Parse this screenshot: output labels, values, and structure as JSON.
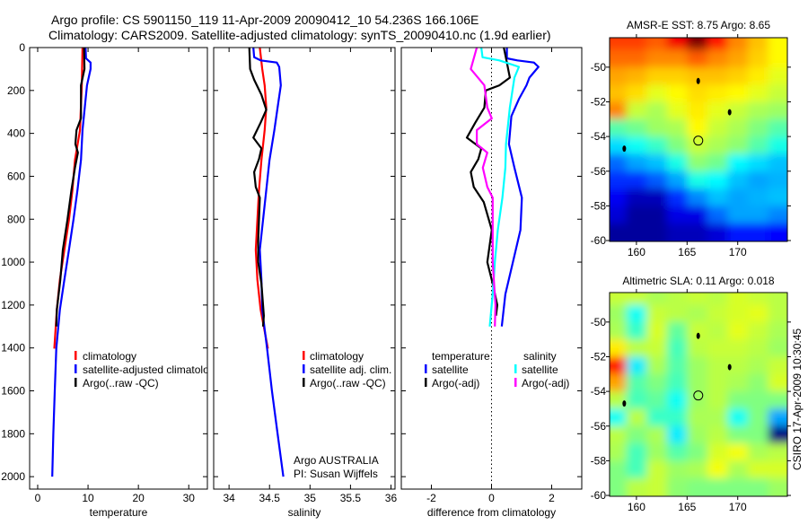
{
  "title_line1": "Argo profile: CS 5901150_119 11-Apr-2009 20090412_10 54.236S 166.106E",
  "title_line2": "Climatology: CARS2009. Satellite-adjusted climatology: synTS_20090410.nc (1.9d earlier)",
  "credit": "CSIRO 17-Apr-2009 10:30:45",
  "annotation": {
    "line1": "Argo AUSTRALIA",
    "line2": "PI: Susan Wijffels"
  },
  "colors": {
    "red": "#ff0000",
    "blue": "#0000ff",
    "black": "#000000",
    "cyan": "#00ffff",
    "magenta": "#ff00ff"
  },
  "chart_data": [
    {
      "type": "line",
      "xlabel": "temperature",
      "ylabel": "",
      "ylim": [
        0,
        2058
      ],
      "xlim": [
        -1.6,
        33.7
      ],
      "y_reversed": true,
      "xticks": [
        "0",
        "10",
        "20",
        "30"
      ],
      "xtick_values": [
        0,
        10,
        20,
        30
      ],
      "yticks": [
        "0",
        "200",
        "400",
        "600",
        "800",
        "1000",
        "1200",
        "1400",
        "1600",
        "1800",
        "2000"
      ],
      "legend": [
        "climatology",
        "satellite-adjusted climatology",
        "Argo(..raw -QC)"
      ],
      "series": [
        {
          "name": "climatology",
          "color": "red",
          "points": [
            [
              8.9,
              0
            ],
            [
              8.75,
              176
            ],
            [
              8.4,
              385
            ],
            [
              7.4,
              524
            ],
            [
              6.9,
              664
            ],
            [
              6.2,
              803
            ],
            [
              5.3,
              943
            ],
            [
              4.4,
              1082
            ],
            [
              3.8,
              1222
            ],
            [
              3.3,
              1403
            ]
          ]
        },
        {
          "name": "satellite-adjusted climatology",
          "color": "blue",
          "points": [
            [
              9.5,
              0
            ],
            [
              9.6,
              50
            ],
            [
              10.5,
              70
            ],
            [
              10.5,
              100
            ],
            [
              9.8,
              176
            ],
            [
              8.9,
              385
            ],
            [
              8.6,
              524
            ],
            [
              7.9,
              664
            ],
            [
              7.1,
              803
            ],
            [
              6.2,
              943
            ],
            [
              5.3,
              1082
            ],
            [
              4.4,
              1222
            ],
            [
              3.7,
              1403
            ],
            [
              3.4,
              1600
            ],
            [
              3.1,
              1800
            ],
            [
              2.9,
              2000
            ]
          ]
        },
        {
          "name": "Argo(..raw -QC)",
          "color": "black",
          "points": [
            [
              9.2,
              0
            ],
            [
              9.3,
              100
            ],
            [
              8.6,
              176
            ],
            [
              8.6,
              330
            ],
            [
              7.7,
              385
            ],
            [
              7.5,
              450
            ],
            [
              8.0,
              490
            ],
            [
              7.4,
              560
            ],
            [
              6.7,
              664
            ],
            [
              5.9,
              803
            ],
            [
              5.0,
              943
            ],
            [
              4.5,
              1082
            ],
            [
              3.8,
              1222
            ],
            [
              3.7,
              1300
            ]
          ]
        }
      ]
    },
    {
      "type": "line",
      "xlabel": "salinity",
      "ylim": [
        0,
        2058
      ],
      "xlim": [
        33.81,
        36.05
      ],
      "y_reversed": true,
      "xticks": [
        "34",
        "34.5",
        "35",
        "35.5",
        "36"
      ],
      "xtick_values": [
        34,
        34.5,
        35,
        35.5,
        36
      ],
      "legend": [
        "climatology",
        "satellite adj. clim.",
        "Argo(..raw -QC)"
      ],
      "series": [
        {
          "name": "climatology",
          "color": "red",
          "points": [
            [
              34.38,
              0
            ],
            [
              34.41,
              100
            ],
            [
              34.44,
              176
            ],
            [
              34.46,
              280
            ],
            [
              34.44,
              385
            ],
            [
              34.4,
              524
            ],
            [
              34.37,
              664
            ],
            [
              34.35,
              803
            ],
            [
              34.33,
              943
            ],
            [
              34.35,
              1082
            ],
            [
              34.39,
              1222
            ],
            [
              34.48,
              1403
            ]
          ]
        },
        {
          "name": "satellite adj. clim.",
          "color": "blue",
          "points": [
            [
              34.3,
              0
            ],
            [
              34.31,
              45
            ],
            [
              34.39,
              60
            ],
            [
              34.59,
              70
            ],
            [
              34.62,
              90
            ],
            [
              34.64,
              176
            ],
            [
              34.6,
              280
            ],
            [
              34.56,
              385
            ],
            [
              34.5,
              524
            ],
            [
              34.46,
              664
            ],
            [
              34.42,
              803
            ],
            [
              34.38,
              943
            ],
            [
              34.4,
              1082
            ],
            [
              34.41,
              1222
            ],
            [
              34.47,
              1403
            ],
            [
              34.53,
              1600
            ],
            [
              34.6,
              1800
            ],
            [
              34.67,
              2000
            ]
          ]
        },
        {
          "name": "Argo(..raw -QC)",
          "color": "black",
          "points": [
            [
              34.25,
              0
            ],
            [
              34.26,
              100
            ],
            [
              34.31,
              150
            ],
            [
              34.4,
              220
            ],
            [
              34.46,
              290
            ],
            [
              34.39,
              350
            ],
            [
              34.3,
              420
            ],
            [
              34.4,
              470
            ],
            [
              34.37,
              520
            ],
            [
              34.31,
              580
            ],
            [
              34.33,
              650
            ],
            [
              34.38,
              700
            ],
            [
              34.36,
              900
            ],
            [
              34.36,
              1000
            ],
            [
              34.4,
              1100
            ],
            [
              34.43,
              1250
            ],
            [
              34.42,
              1300
            ]
          ]
        }
      ]
    },
    {
      "type": "line",
      "xlabel": "difference from climatology",
      "ylim": [
        0,
        2058
      ],
      "xlim": [
        -3,
        3
      ],
      "y_reversed": true,
      "xticks": [
        "-2",
        "0",
        "2"
      ],
      "xtick_values": [
        -2,
        0,
        2
      ],
      "legend_groups": [
        {
          "heading": "temperature",
          "items": [
            "satellite",
            "Argo(-adj)"
          ]
        },
        {
          "heading": "salinity",
          "items": [
            "satellite",
            "Argo(-adj)"
          ]
        }
      ],
      "series": [
        {
          "name": "temperature satellite",
          "color": "blue",
          "points": [
            [
              0.51,
              0
            ],
            [
              0.51,
              50
            ],
            [
              0.86,
              60
            ],
            [
              1.41,
              70
            ],
            [
              1.56,
              90
            ],
            [
              1.26,
              140
            ],
            [
              1.16,
              176
            ],
            [
              0.91,
              240
            ],
            [
              0.66,
              320
            ],
            [
              0.58,
              450
            ],
            [
              0.76,
              560
            ],
            [
              1.01,
              700
            ],
            [
              0.96,
              850
            ],
            [
              0.71,
              1000
            ],
            [
              0.46,
              1150
            ],
            [
              0.34,
              1300
            ]
          ]
        },
        {
          "name": "temperature Argo(-adj)",
          "color": "black",
          "points": [
            [
              0.41,
              0
            ],
            [
              0.51,
              70
            ],
            [
              0.61,
              140
            ],
            [
              0.26,
              176
            ],
            [
              -0.19,
              200
            ],
            [
              -0.24,
              280
            ],
            [
              -0.54,
              350
            ],
            [
              -0.82,
              420
            ],
            [
              -0.34,
              470
            ],
            [
              -0.44,
              520
            ],
            [
              -0.69,
              580
            ],
            [
              -0.59,
              650
            ],
            [
              -0.26,
              720
            ],
            [
              0.01,
              850
            ],
            [
              -0.14,
              1000
            ],
            [
              0.04,
              1100
            ],
            [
              0.19,
              1200
            ],
            [
              0.15,
              1250
            ]
          ]
        },
        {
          "name": "salinity satellite",
          "color": "cyan",
          "points": [
            [
              -0.34,
              0
            ],
            [
              -0.3,
              45
            ],
            [
              0.26,
              60
            ],
            [
              0.91,
              90
            ],
            [
              0.76,
              140
            ],
            [
              0.61,
              280
            ],
            [
              0.48,
              450
            ],
            [
              0.46,
              560
            ],
            [
              0.36,
              700
            ],
            [
              0.21,
              850
            ],
            [
              0.11,
              1000
            ],
            [
              0.04,
              1150
            ],
            [
              -0.06,
              1300
            ]
          ]
        },
        {
          "name": "salinity Argo(-adj)",
          "color": "magenta",
          "points": [
            [
              -0.49,
              0
            ],
            [
              -0.69,
              100
            ],
            [
              -0.24,
              176
            ],
            [
              -0.14,
              280
            ],
            [
              0.01,
              330
            ],
            [
              -0.49,
              385
            ],
            [
              -0.49,
              450
            ],
            [
              -0.14,
              490
            ],
            [
              -0.29,
              560
            ],
            [
              -0.14,
              650
            ],
            [
              0.04,
              700
            ],
            [
              0.04,
              1000
            ],
            [
              0.13,
              1200
            ],
            [
              0.11,
              1300
            ]
          ]
        }
      ]
    },
    {
      "type": "heatmap",
      "title": "AMSR-E SST: 8.75 Argo: 8.65",
      "xlim": [
        157.35,
        174.9
      ],
      "ylim": [
        -60.05,
        -48.3
      ],
      "xticks": [
        "160",
        "165",
        "170"
      ],
      "xtick_values": [
        160,
        165,
        170
      ],
      "yticks": [
        "-50",
        "-52",
        "-54",
        "-56",
        "-58",
        "-60"
      ],
      "ytick_values": [
        -50,
        -52,
        -54,
        -56,
        -58,
        -60
      ],
      "colormap": "jet",
      "crange": [
        4.8,
        11.8
      ],
      "lon": [
        158,
        160,
        162,
        164,
        166,
        168,
        170,
        172,
        174
      ],
      "lat": [
        -48.5,
        -49.5,
        -50.5,
        -51.5,
        -52.5,
        -53.5,
        -54.5,
        -55.5,
        -56.5,
        -57.5,
        -58.5,
        -59.5
      ],
      "values": [
        [
          10.5,
          10.5,
          10.3,
          11.0,
          11.8,
          10.8,
          10.0,
          9.6,
          9.2
        ],
        [
          10.2,
          10.2,
          10.0,
          10.0,
          10.3,
          10.0,
          9.8,
          9.5,
          9.2
        ],
        [
          9.8,
          9.7,
          9.5,
          9.5,
          9.6,
          9.6,
          9.5,
          9.3,
          9.0
        ],
        [
          9.6,
          9.4,
          9.0,
          9.2,
          9.4,
          9.3,
          9.2,
          9.0,
          8.8
        ],
        [
          10.0,
          8.8,
          8.6,
          9.0,
          9.3,
          9.0,
          8.8,
          8.6,
          8.5
        ],
        [
          8.0,
          8.2,
          8.5,
          8.6,
          9.2,
          8.8,
          8.6,
          8.3,
          8.0
        ],
        [
          7.2,
          7.5,
          7.8,
          8.3,
          8.8,
          8.6,
          8.4,
          8.0,
          7.6
        ],
        [
          6.4,
          6.8,
          7.0,
          7.6,
          8.4,
          8.2,
          7.4,
          7.2,
          7.0
        ],
        [
          6.0,
          6.0,
          6.3,
          6.8,
          7.6,
          7.4,
          7.0,
          6.8,
          6.9
        ],
        [
          5.6,
          5.2,
          5.2,
          6.0,
          6.6,
          7.0,
          6.8,
          6.9,
          7.0
        ],
        [
          5.4,
          5.0,
          5.0,
          5.5,
          5.5,
          6.4,
          6.8,
          6.8,
          6.6
        ],
        [
          5.0,
          5.0,
          5.0,
          5.2,
          5.2,
          5.4,
          5.8,
          5.8,
          5.7
        ]
      ],
      "profile_location": [
        166.106,
        -54.236
      ],
      "land_marks": [
        [
          166.1,
          -50.8
        ],
        [
          169.2,
          -52.6
        ],
        [
          158.8,
          -54.7
        ]
      ]
    },
    {
      "type": "heatmap",
      "title": "Altimetric SLA: 0.11 Argo: 0.018",
      "xlim": [
        157.35,
        174.9
      ],
      "ylim": [
        -60.05,
        -48.3
      ],
      "xticks": [
        "160",
        "165",
        "170"
      ],
      "xtick_values": [
        160,
        165,
        170
      ],
      "yticks": [
        "-50",
        "-52",
        "-54",
        "-56",
        "-58",
        "-60"
      ],
      "ytick_values": [
        -50,
        -52,
        -54,
        -56,
        -58,
        -60
      ],
      "colormap": "jet",
      "crange": [
        -0.35,
        0.35
      ],
      "lon": [
        158,
        160,
        162,
        164,
        166,
        168,
        170,
        172,
        174
      ],
      "lat": [
        -48.5,
        -49.5,
        -50.5,
        -51.5,
        -52.5,
        -53.5,
        -54.5,
        -55.5,
        -56.5,
        -57.5,
        -58.5,
        -59.5
      ],
      "values": [
        [
          0.05,
          0.05,
          0.03,
          0.04,
          0.05,
          0.04,
          0.06,
          0.05,
          0.04
        ],
        [
          0.02,
          -0.08,
          0.05,
          0.04,
          0.03,
          0.05,
          0.06,
          0.07,
          0.04
        ],
        [
          0.03,
          -0.05,
          0.06,
          -0.02,
          0.05,
          0.04,
          0.07,
          0.05,
          0.03
        ],
        [
          0.1,
          0.04,
          0.05,
          -0.04,
          0.04,
          0.05,
          0.05,
          0.04,
          0.02
        ],
        [
          0.25,
          -0.1,
          0.03,
          -0.03,
          0.02,
          0.04,
          0.04,
          0.03,
          0.05
        ],
        [
          0.15,
          -0.03,
          0.0,
          -0.04,
          0.02,
          0.04,
          0.03,
          0.01,
          0.06
        ],
        [
          0.04,
          -0.04,
          -0.02,
          -0.08,
          0.02,
          0.04,
          0.0,
          0.0,
          0.0
        ],
        [
          -0.08,
          0.04,
          -0.05,
          -0.05,
          0.03,
          0.03,
          -0.08,
          0.0,
          -0.15
        ],
        [
          0.04,
          0.0,
          0.03,
          -0.1,
          0.02,
          0.04,
          0.0,
          0.0,
          -0.35
        ],
        [
          0.03,
          -0.04,
          0.02,
          -0.03,
          0.0,
          0.06,
          0.08,
          0.03,
          0.04
        ],
        [
          0.0,
          -0.04,
          0.05,
          0.02,
          0.03,
          0.08,
          0.03,
          0.06,
          0.06
        ],
        [
          0.0,
          0.04,
          0.05,
          0.01,
          0.0,
          0.0,
          0.0,
          0.0,
          0.02
        ]
      ],
      "profile_location": [
        166.106,
        -54.236
      ],
      "land_marks": [
        [
          166.1,
          -50.8
        ],
        [
          169.2,
          -52.6
        ],
        [
          158.8,
          -54.7
        ]
      ]
    }
  ]
}
